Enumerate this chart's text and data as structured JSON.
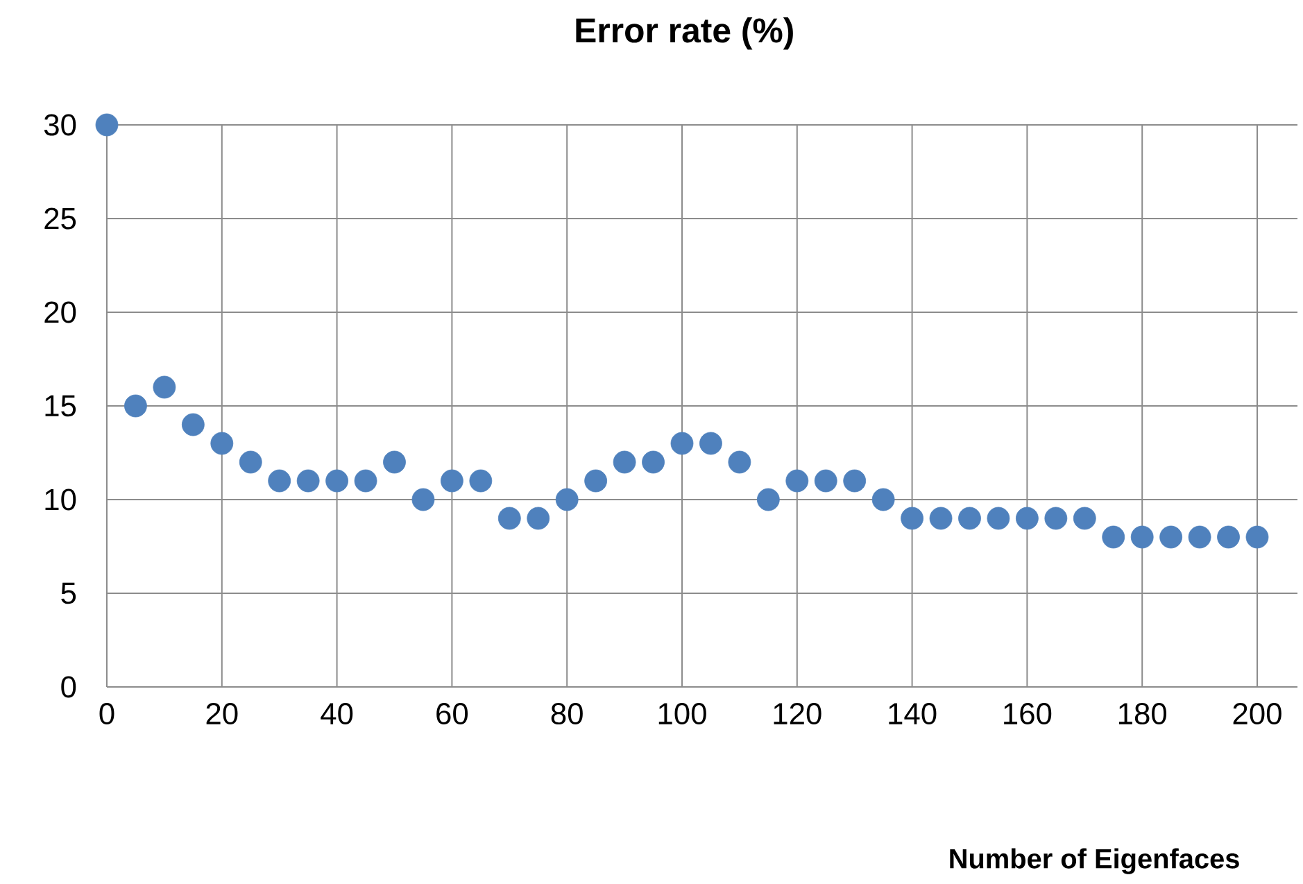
{
  "chart_data": {
    "type": "scatter",
    "title": "Error rate (%)",
    "xlabel": "Number of Eigenfaces",
    "x": [
      0,
      5,
      10,
      15,
      20,
      25,
      30,
      35,
      40,
      45,
      50,
      55,
      60,
      65,
      70,
      75,
      80,
      85,
      90,
      95,
      100,
      105,
      110,
      115,
      120,
      125,
      130,
      135,
      140,
      145,
      150,
      155,
      160,
      165,
      170,
      175,
      180,
      185,
      190,
      195,
      200
    ],
    "series": [
      {
        "color": "#4f81bd",
        "values": [
          30,
          15,
          16,
          14,
          13,
          12,
          11,
          11,
          11,
          11,
          12,
          10,
          11,
          11,
          9,
          9,
          10,
          11,
          12,
          12,
          13,
          13,
          12,
          10,
          11,
          11,
          11,
          10,
          9,
          9,
          9,
          9,
          9,
          9,
          9,
          8,
          8,
          8,
          8,
          8,
          8
        ]
      }
    ],
    "xlim": [
      0,
      207
    ],
    "ylim": [
      0,
      30
    ],
    "xticks": [
      0,
      20,
      40,
      60,
      80,
      100,
      120,
      140,
      160,
      180,
      200
    ],
    "yticks": [
      0,
      5,
      10,
      15,
      20,
      25,
      30
    ],
    "grid": true,
    "marker": "circle"
  }
}
